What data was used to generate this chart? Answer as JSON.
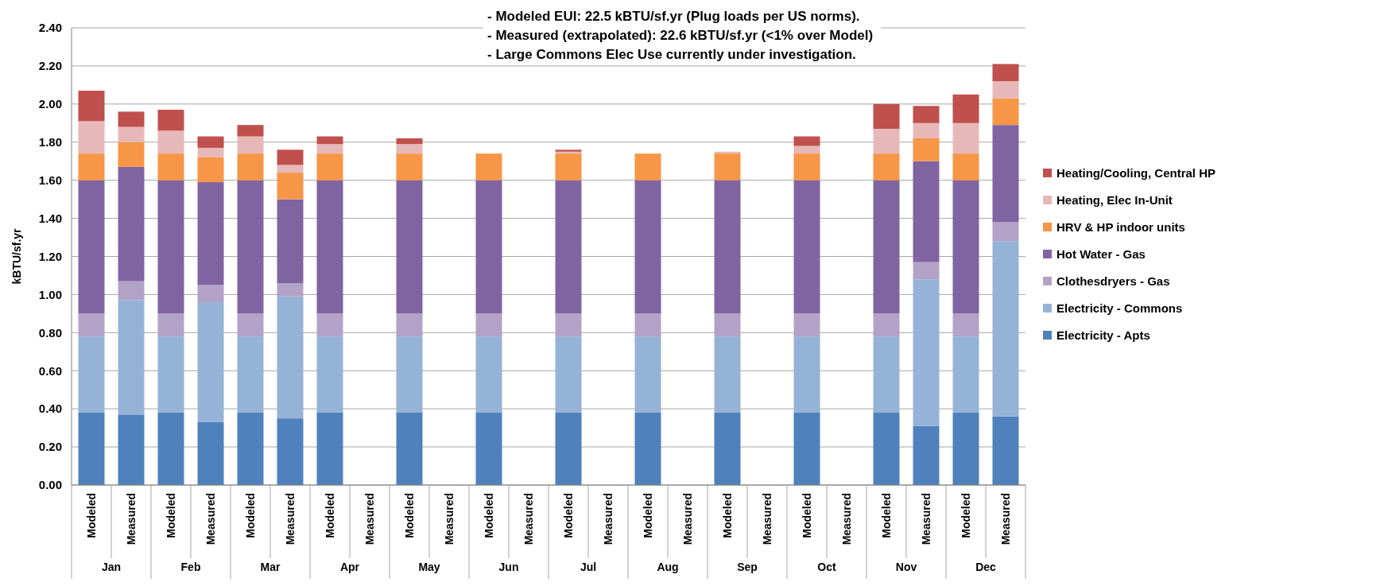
{
  "chart_data": {
    "type": "bar",
    "stacked": true,
    "ylabel": "kBTU/sf.yr",
    "categories": [
      "Modeled",
      "Measured",
      "Modeled",
      "Measured",
      "Modeled",
      "Measured",
      "Modeled",
      "Measured",
      "Modeled",
      "Measured",
      "Modeled",
      "Measured",
      "Modeled",
      "Measured",
      "Modeled",
      "Measured",
      "Modeled",
      "Measured",
      "Modeled",
      "Measured",
      "Modeled",
      "Measured",
      "Modeled",
      "Measured"
    ],
    "series": [
      {
        "name": "Electricity - Apts",
        "color": "#4f81bd",
        "values": [
          0.38,
          0.37,
          0.38,
          0.33,
          0.38,
          0.35,
          0.38,
          null,
          0.38,
          null,
          0.38,
          null,
          0.38,
          null,
          0.38,
          null,
          0.38,
          null,
          0.38,
          null,
          0.38,
          0.31,
          0.38,
          0.36
        ]
      },
      {
        "name": "Electricity - Commons",
        "color": "#95b3d7",
        "values": [
          0.4,
          0.6,
          0.4,
          0.63,
          0.4,
          0.64,
          0.4,
          null,
          0.4,
          null,
          0.4,
          null,
          0.4,
          null,
          0.4,
          null,
          0.4,
          null,
          0.4,
          null,
          0.4,
          0.77,
          0.4,
          0.92
        ]
      },
      {
        "name": "Clothesdryers - Gas",
        "color": "#b3a2c7",
        "values": [
          0.12,
          0.1,
          0.12,
          0.09,
          0.12,
          0.07,
          0.12,
          null,
          0.12,
          null,
          0.12,
          null,
          0.12,
          null,
          0.12,
          null,
          0.12,
          null,
          0.12,
          null,
          0.12,
          0.09,
          0.12,
          0.1
        ]
      },
      {
        "name": "Hot Water - Gas",
        "color": "#8064a2",
        "values": [
          0.7,
          0.6,
          0.7,
          0.54,
          0.7,
          0.44,
          0.7,
          null,
          0.7,
          null,
          0.7,
          null,
          0.7,
          null,
          0.7,
          null,
          0.7,
          null,
          0.7,
          null,
          0.7,
          0.53,
          0.7,
          0.51
        ]
      },
      {
        "name": "HRV & HP indoor units",
        "color": "#f79646",
        "values": [
          0.14,
          0.13,
          0.14,
          0.13,
          0.14,
          0.14,
          0.14,
          null,
          0.14,
          null,
          0.14,
          null,
          0.14,
          null,
          0.14,
          null,
          0.14,
          null,
          0.14,
          null,
          0.14,
          0.12,
          0.14,
          0.14
        ]
      },
      {
        "name": "Heating, Elec In-Unit",
        "color": "#e6b9b8",
        "values": [
          0.17,
          0.08,
          0.12,
          0.05,
          0.09,
          0.04,
          0.05,
          null,
          0.05,
          null,
          0,
          null,
          0.01,
          null,
          0,
          null,
          0.01,
          null,
          0.04,
          null,
          0.13,
          0.08,
          0.16,
          0.09
        ]
      },
      {
        "name": "Heating/Cooling, Central HP",
        "color": "#c0504d",
        "values": [
          0.16,
          0.08,
          0.11,
          0.06,
          0.06,
          0.08,
          0.04,
          null,
          0.03,
          null,
          0,
          null,
          0.01,
          null,
          0,
          null,
          0,
          null,
          0.05,
          null,
          0.13,
          0.09,
          0.15,
          0.09
        ]
      }
    ],
    "ylim": [
      0,
      2.4
    ],
    "yticks": [
      {
        "value": 0,
        "label": "0.00"
      },
      {
        "value": 0.2,
        "label": "0.20"
      },
      {
        "value": 0.4,
        "label": "0.40"
      },
      {
        "value": 0.6,
        "label": "0.60"
      },
      {
        "value": 0.8,
        "label": "0.80"
      },
      {
        "value": 1,
        "label": "1.00"
      },
      {
        "value": 1.2,
        "label": "1.20"
      },
      {
        "value": 1.4,
        "label": "1.40"
      },
      {
        "value": 1.6,
        "label": "1.60"
      },
      {
        "value": 1.8,
        "label": "1.80"
      },
      {
        "value": 2,
        "label": "2.00"
      },
      {
        "value": 2.2,
        "label": "2.20"
      },
      {
        "value": 2.4,
        "label": "2.40"
      }
    ],
    "grid": "y",
    "legend": "right",
    "annotations": [
      "- Modeled EUI: 22.5 kBTU/sf.yr (Plug loads per US norms).",
      "- Measured (extrapolated): 22.6 kBTU/sf.yr (<1% over Model)",
      "- Large Commons Elec Use currently under investigation.",
      "Jan",
      "Feb",
      "Mar",
      "Apr",
      "May",
      "Jun",
      "Jul",
      "Aug",
      "Sep",
      "Oct",
      "Nov",
      "Dec"
    ]
  }
}
